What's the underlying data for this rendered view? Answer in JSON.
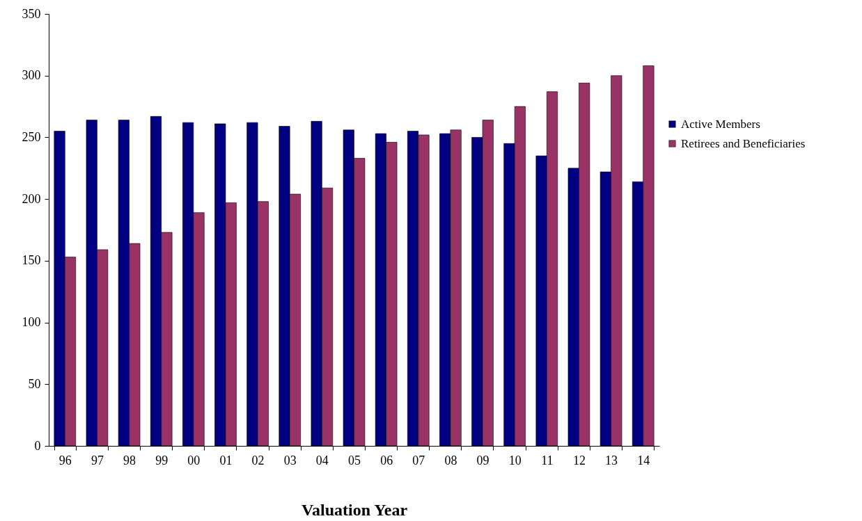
{
  "chart_data": {
    "type": "bar",
    "xlabel": "Valuation Year",
    "categories": [
      "96",
      "97",
      "98",
      "99",
      "00",
      "01",
      "02",
      "03",
      "04",
      "05",
      "06",
      "07",
      "08",
      "09",
      "10",
      "11",
      "12",
      "13",
      "14"
    ],
    "series": [
      {
        "name": "Active Members",
        "color": "#000080",
        "values": [
          255,
          264,
          264,
          267,
          262,
          261,
          262,
          259,
          263,
          256,
          253,
          255,
          253,
          250,
          245,
          235,
          225,
          222,
          214
        ]
      },
      {
        "name": "Retirees and Beneficiaries",
        "color": "#993366",
        "values": [
          153,
          159,
          164,
          173,
          189,
          197,
          198,
          204,
          209,
          233,
          246,
          252,
          256,
          264,
          275,
          287,
          294,
          300,
          308
        ]
      }
    ],
    "ylim": [
      0,
      350
    ],
    "yticks": [
      0,
      50,
      100,
      150,
      200,
      250,
      300,
      350
    ],
    "grid": false,
    "legend": "right"
  }
}
